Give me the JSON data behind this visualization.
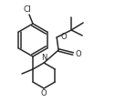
{
  "bg_color": "#ffffff",
  "line_color": "#2a2a2a",
  "lw": 1.1,
  "figsize": [
    1.26,
    1.12
  ],
  "dpi": 100,
  "xlim": [
    0,
    126
  ],
  "ylim": [
    0,
    112
  ]
}
